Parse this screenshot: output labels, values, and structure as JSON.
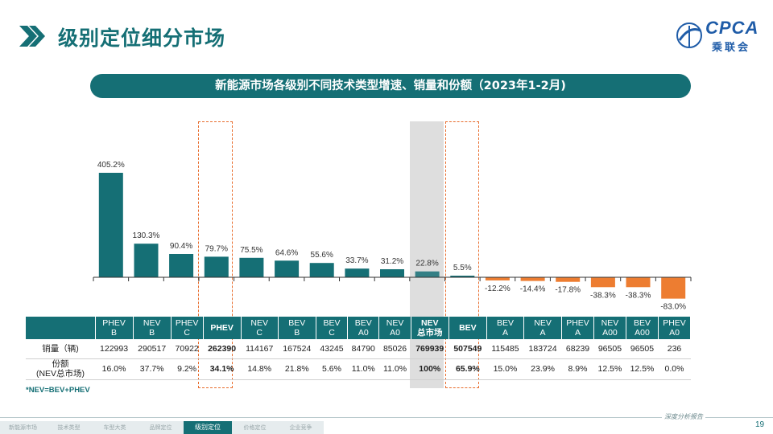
{
  "header": {
    "title": "级别定位细分市场",
    "logo_text": "CPCA",
    "logo_cn": "乘联会"
  },
  "subtitle": "新能源市场各级别不同技术类型增速、销量和份额（2023年1-2月)",
  "colors": {
    "teal": "#156f75",
    "orange": "#ed7d31",
    "highlight": "#e86c2c"
  },
  "chart_data": {
    "type": "bar",
    "title": "新能源市场各级别不同技术类型增速、销量和份额（2023年1-2月)",
    "unit": "%",
    "categories": [
      "PHEV B",
      "NEV B",
      "PHEV C",
      "PHEV",
      "NEV C",
      "BEV B",
      "BEV C",
      "BEV A0",
      "NEV A0",
      "NEV 总市场",
      "BEV",
      "BEV A",
      "NEV A",
      "PHEV A",
      "NEV A00",
      "BEV A00",
      "PHEV A0"
    ],
    "series": [
      {
        "name": "增速",
        "values": [
          405.2,
          130.3,
          90.4,
          79.7,
          75.5,
          64.6,
          55.6,
          33.7,
          31.2,
          22.8,
          5.5,
          -12.2,
          -14.4,
          -17.8,
          -38.3,
          -38.3,
          -83.0
        ]
      }
    ],
    "labels": [
      "405.2%",
      "130.3%",
      "90.4%",
      "79.7%",
      "75.5%",
      "64.6%",
      "55.6%",
      "33.7%",
      "31.2%",
      "22.8%",
      "5.5%",
      "-12.2%",
      "-14.4%",
      "-17.8%",
      "-38.3%",
      "-38.3%",
      "-83.0%"
    ]
  },
  "table": {
    "columns": [
      "PHEV\nB",
      "NEV\nB",
      "PHEV\nC",
      "PHEV",
      "NEV\nC",
      "BEV\nB",
      "BEV\nC",
      "BEV\nA0",
      "NEV\nA0",
      "NEV\n总市场",
      "BEV",
      "BEV\nA",
      "NEV\nA",
      "PHEV\nA",
      "NEV\nA00",
      "BEV\nA00",
      "PHEV\nA0"
    ],
    "rows": [
      {
        "label": "销量（辆)",
        "values": [
          "122993",
          "290517",
          "70922",
          "262390",
          "114167",
          "167524",
          "43245",
          "84790",
          "85026",
          "769939",
          "507549",
          "115485",
          "183724",
          "68239",
          "96505",
          "96505",
          "236"
        ]
      },
      {
        "label": "份额\n(NEV总市场)",
        "values": [
          "16.0%",
          "37.7%",
          "9.2%",
          "34.1%",
          "14.8%",
          "21.8%",
          "5.6%",
          "11.0%",
          "11.0%",
          "100%",
          "65.9%",
          "15.0%",
          "23.9%",
          "8.9%",
          "12.5%",
          "12.5%",
          "0.0%"
        ]
      }
    ]
  },
  "note": "*NEV=BEV+PHEV",
  "footer": {
    "nav": [
      "新能源市场",
      "技术类型",
      "车型大类",
      "品牌定位",
      "级别定位",
      "价格定位",
      "企业竞争"
    ],
    "active_index": 4,
    "tagline": "深度分析报告",
    "page": "19"
  }
}
